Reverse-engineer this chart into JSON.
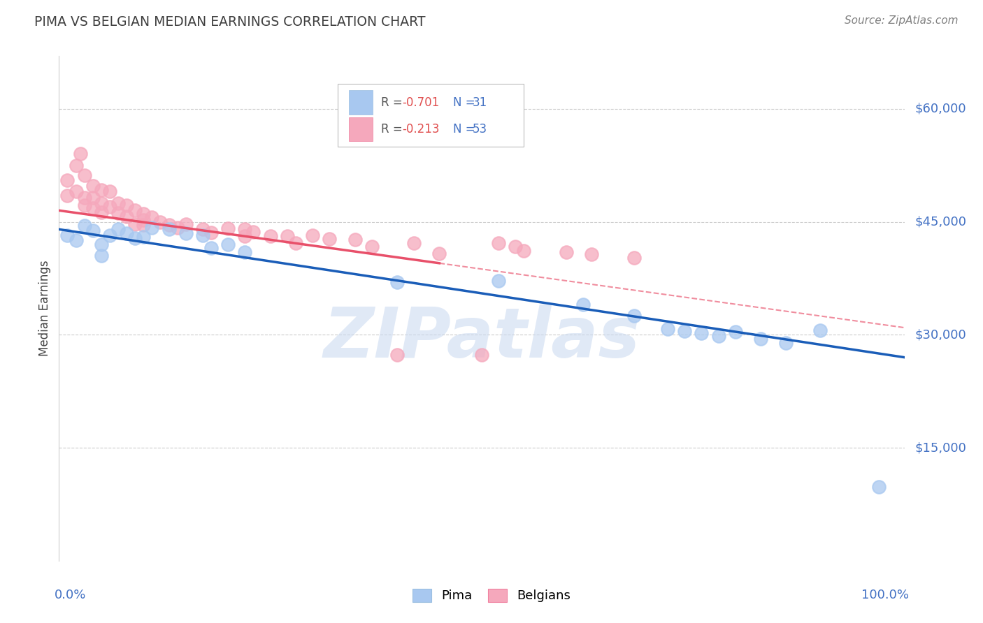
{
  "title": "PIMA VS BELGIAN MEDIAN EARNINGS CORRELATION CHART",
  "source": "Source: ZipAtlas.com",
  "ylabel": "Median Earnings",
  "ytick_labels": [
    "$60,000",
    "$45,000",
    "$30,000",
    "$15,000"
  ],
  "ytick_values": [
    60000,
    45000,
    30000,
    15000
  ],
  "ylim": [
    0,
    67000
  ],
  "xlim": [
    0.0,
    1.0
  ],
  "legend_pima_R": "R = ",
  "legend_pima_R_val": "-0.701",
  "legend_pima_N_label": "N = ",
  "legend_pima_N_val": "31",
  "legend_belgian_R": "R = ",
  "legend_belgian_R_val": "-0.213",
  "legend_belgian_N_label": "N = ",
  "legend_belgian_N_val": "53",
  "pima_color": "#A8C8F0",
  "pima_edge_color": "#A8C8F0",
  "belgian_color": "#F5A8BC",
  "belgian_edge_color": "#F5A8BC",
  "pima_line_color": "#1A5DB8",
  "belgian_line_color": "#E8506A",
  "background_color": "#ffffff",
  "watermark_color": "#C8D8F0",
  "pima_x": [
    0.01,
    0.02,
    0.03,
    0.04,
    0.05,
    0.05,
    0.06,
    0.07,
    0.08,
    0.09,
    0.1,
    0.11,
    0.13,
    0.15,
    0.17,
    0.18,
    0.2,
    0.22,
    0.4,
    0.52,
    0.62,
    0.68,
    0.72,
    0.74,
    0.76,
    0.78,
    0.8,
    0.83,
    0.86,
    0.9,
    0.97
  ],
  "pima_y": [
    43200,
    42500,
    44500,
    43800,
    42000,
    40500,
    43200,
    44000,
    43500,
    42800,
    43000,
    44200,
    44000,
    43500,
    43200,
    41500,
    42000,
    41000,
    37000,
    37200,
    34000,
    32500,
    30800,
    30500,
    30200,
    29800,
    30400,
    29500,
    28900,
    30600,
    9800
  ],
  "belgian_x": [
    0.01,
    0.01,
    0.02,
    0.02,
    0.025,
    0.03,
    0.03,
    0.03,
    0.04,
    0.04,
    0.04,
    0.05,
    0.05,
    0.05,
    0.06,
    0.06,
    0.07,
    0.07,
    0.08,
    0.08,
    0.09,
    0.09,
    0.1,
    0.1,
    0.1,
    0.11,
    0.12,
    0.13,
    0.14,
    0.15,
    0.17,
    0.18,
    0.2,
    0.22,
    0.22,
    0.23,
    0.25,
    0.27,
    0.28,
    0.3,
    0.32,
    0.35,
    0.37,
    0.4,
    0.42,
    0.45,
    0.5,
    0.52,
    0.54,
    0.55,
    0.6,
    0.63,
    0.68
  ],
  "belgian_y": [
    50500,
    48500,
    52500,
    49000,
    54000,
    51200,
    48200,
    47200,
    49800,
    48200,
    46800,
    49200,
    47500,
    46300,
    49000,
    47000,
    47500,
    46200,
    47200,
    45700,
    46500,
    44700,
    46100,
    45200,
    44600,
    45600,
    45000,
    44600,
    44200,
    44700,
    44000,
    43600,
    44100,
    44000,
    43100,
    43700,
    43100,
    43100,
    42200,
    43200,
    42700,
    42600,
    41700,
    27300,
    42200,
    40800,
    27300,
    42200,
    41700,
    41200,
    41000,
    40700,
    40200
  ]
}
